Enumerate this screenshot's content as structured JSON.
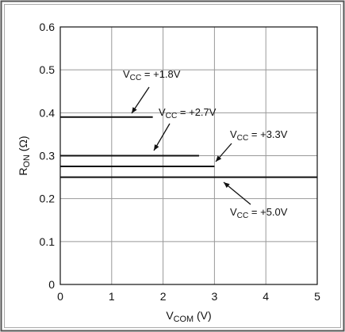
{
  "chart_data": {
    "type": "line",
    "x_label_parts": [
      "V",
      "COM",
      " (V)"
    ],
    "y_label_parts": [
      "R",
      "ON",
      " (Ω)"
    ],
    "xlim": [
      0,
      5
    ],
    "xticks": [
      0,
      1,
      2,
      3,
      4,
      5
    ],
    "ylim": [
      0,
      0.6
    ],
    "yticks": [
      0,
      0.1,
      0.2,
      0.3,
      0.4,
      0.5,
      0.6
    ],
    "grid": true,
    "series": [
      {
        "name_parts": [
          "V",
          "CC",
          " = +1.8V"
        ],
        "color": "#111111",
        "x": [
          0,
          1.8
        ],
        "values": [
          0.39,
          0.39
        ]
      },
      {
        "name_parts": [
          "V",
          "CC",
          " = +2.7V"
        ],
        "color": "#111111",
        "x": [
          0,
          2.7
        ],
        "values": [
          0.3,
          0.3
        ]
      },
      {
        "name_parts": [
          "V",
          "CC",
          " = +3.3V"
        ],
        "color": "#111111",
        "x": [
          0,
          3.0
        ],
        "values": [
          0.275,
          0.275
        ]
      },
      {
        "name_parts": [
          "V",
          "CC",
          " = +5.0V"
        ],
        "color": "#111111",
        "x": [
          0,
          5
        ],
        "values": [
          0.25,
          0.25
        ]
      }
    ]
  }
}
